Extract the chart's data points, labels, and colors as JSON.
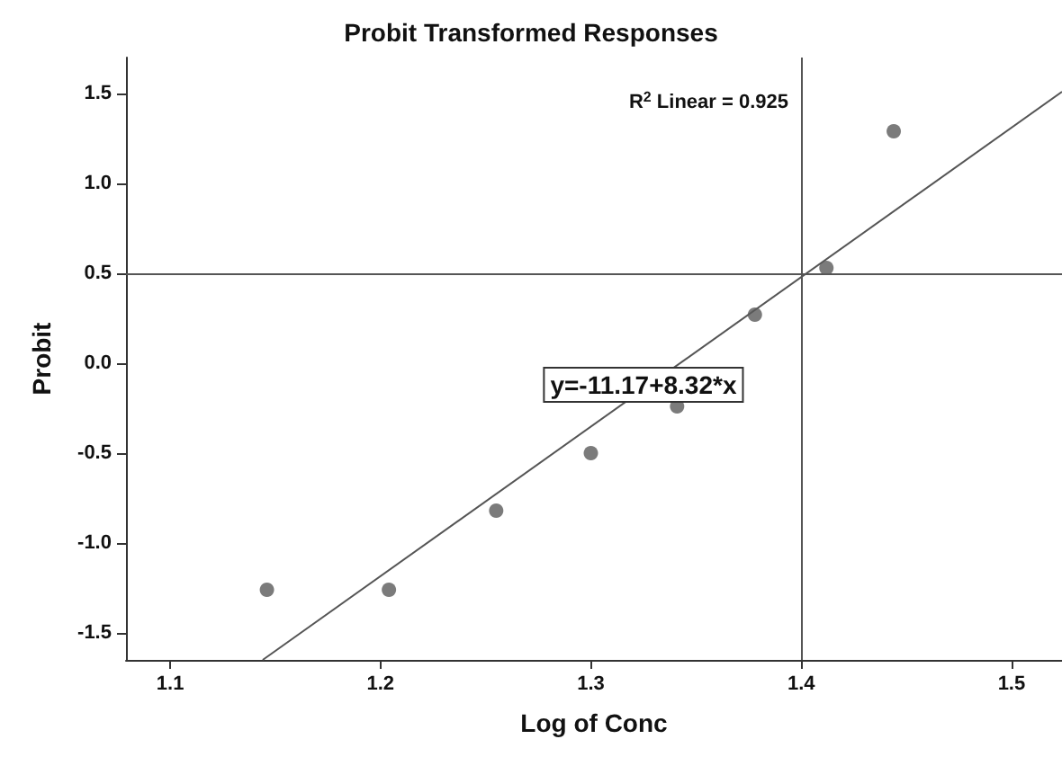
{
  "chart_data": {
    "type": "scatter",
    "title": "Probit Transformed Responses",
    "xlabel": "Log of Conc",
    "ylabel": "Probit",
    "xlim": [
      1.079,
      1.524
    ],
    "xticks": [
      {
        "value": 1.1,
        "label": "1.1"
      },
      {
        "value": 1.2,
        "label": "1.2"
      },
      {
        "value": 1.3,
        "label": "1.3"
      },
      {
        "value": 1.4,
        "label": "1.4"
      },
      {
        "value": 1.5,
        "label": "1.5"
      }
    ],
    "ylim": [
      -1.65,
      1.7
    ],
    "yticks": [
      {
        "value": -1.5,
        "label": "-1.5"
      },
      {
        "value": -1,
        "label": "-1.0"
      },
      {
        "value": -0.5,
        "label": "-0.5"
      },
      {
        "value": 0,
        "label": "0.0"
      },
      {
        "value": 0.5,
        "label": "0.5"
      },
      {
        "value": 1,
        "label": "1.0"
      },
      {
        "value": 1.5,
        "label": "1.5"
      }
    ],
    "series": [
      {
        "marker": "circle",
        "color": "#5a5a5a",
        "x": [
          1.146,
          1.204,
          1.255,
          1.3,
          1.341,
          1.378,
          1.412,
          1.444
        ],
        "values": [
          -1.26,
          -1.26,
          -0.82,
          -0.5,
          -0.24,
          0.27,
          0.53,
          1.29
        ]
      },
      {
        "type": "line",
        "marker": "none",
        "color": "#555555",
        "x": [
          1.144,
          1.524
        ],
        "values": [
          -1.65,
          1.51
        ]
      }
    ],
    "ref_lines": [
      {
        "axis": "x",
        "value": 1.4,
        "color": "#555555"
      },
      {
        "axis": "y",
        "value": 0.5,
        "color": "#555555"
      }
    ],
    "annotations": [
      "R$^{2}$ Linear = 0.925",
      {
        "text": "y=-11.17+8.32*x",
        "x": 1.325,
        "y": -0.12
      }
    ],
    "grid": false
  }
}
